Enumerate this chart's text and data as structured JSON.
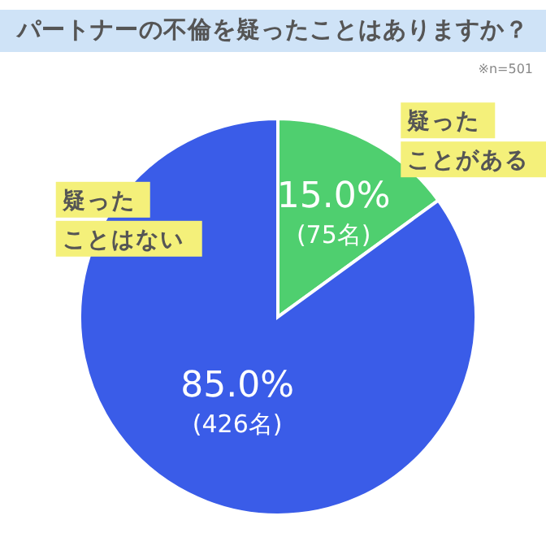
{
  "chart_data": {
    "type": "pie",
    "title": "パートナーの不倫を疑ったことはありますか？",
    "annotations": [
      "※n=501"
    ],
    "categories": [
      "疑ったことがある",
      "疑ったことはない"
    ],
    "values": [
      15.0,
      85.0
    ],
    "colors": [
      "#4fcf6f",
      "#3a5ce8"
    ],
    "value_labels": [
      "15.0%\n(75名)",
      "85.0%\n(426名)"
    ]
  }
}
